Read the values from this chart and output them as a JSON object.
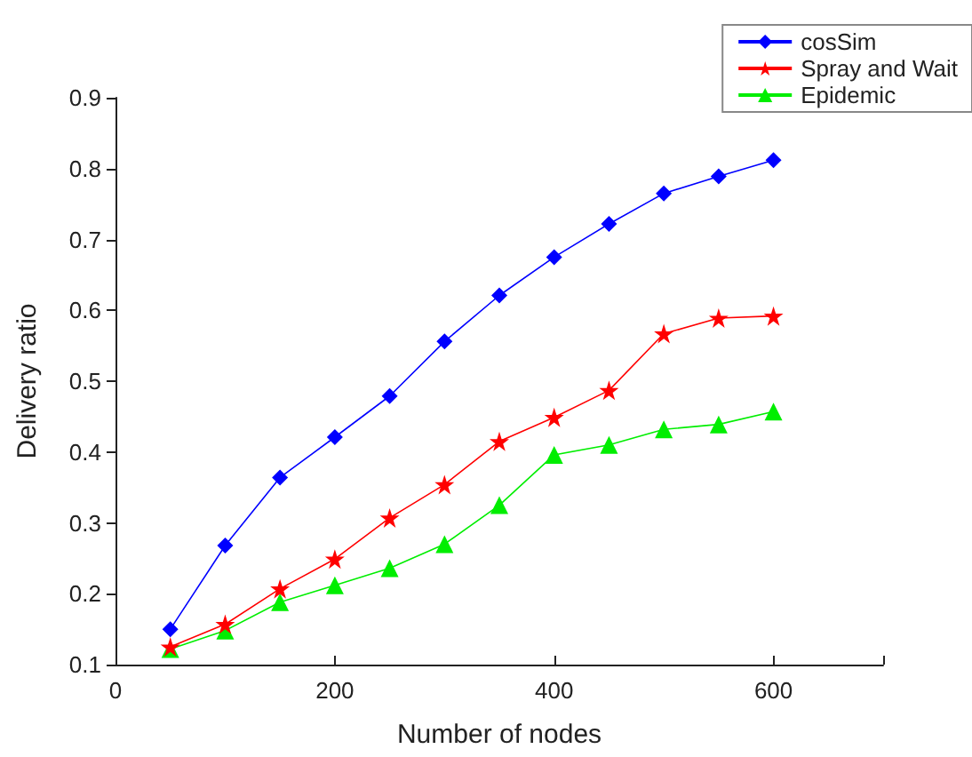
{
  "chart_data": {
    "type": "line",
    "xlabel": "Number of nodes",
    "ylabel": "Delivery ratio",
    "x": [
      50,
      100,
      150,
      200,
      250,
      300,
      350,
      400,
      450,
      500,
      550,
      600
    ],
    "series": [
      {
        "name": "cosSim",
        "color": "#0000ff",
        "marker": "diamond",
        "values": [
          0.15,
          0.268,
          0.364,
          0.421,
          0.479,
          0.556,
          0.621,
          0.675,
          0.722,
          0.765,
          0.789,
          0.812
        ]
      },
      {
        "name": "Spray and Wait",
        "color": "#ff0000",
        "marker": "star",
        "values": [
          0.125,
          0.157,
          0.207,
          0.249,
          0.307,
          0.354,
          0.415,
          0.449,
          0.487,
          0.567,
          0.589,
          0.592
        ]
      },
      {
        "name": "Epidemic",
        "color": "#00ee00",
        "marker": "triangle",
        "values": [
          0.122,
          0.148,
          0.188,
          0.212,
          0.236,
          0.27,
          0.325,
          0.396,
          0.41,
          0.432,
          0.439,
          0.457
        ]
      }
    ],
    "xlim": [
      0,
      700
    ],
    "xticks": [
      0,
      200,
      400,
      600
    ],
    "ylim": [
      0.1,
      0.9
    ],
    "yticks": [
      0.1,
      0.2,
      0.3,
      0.4,
      0.5,
      0.6,
      0.7,
      0.8,
      0.9
    ],
    "grid": false,
    "legend": "top right"
  }
}
